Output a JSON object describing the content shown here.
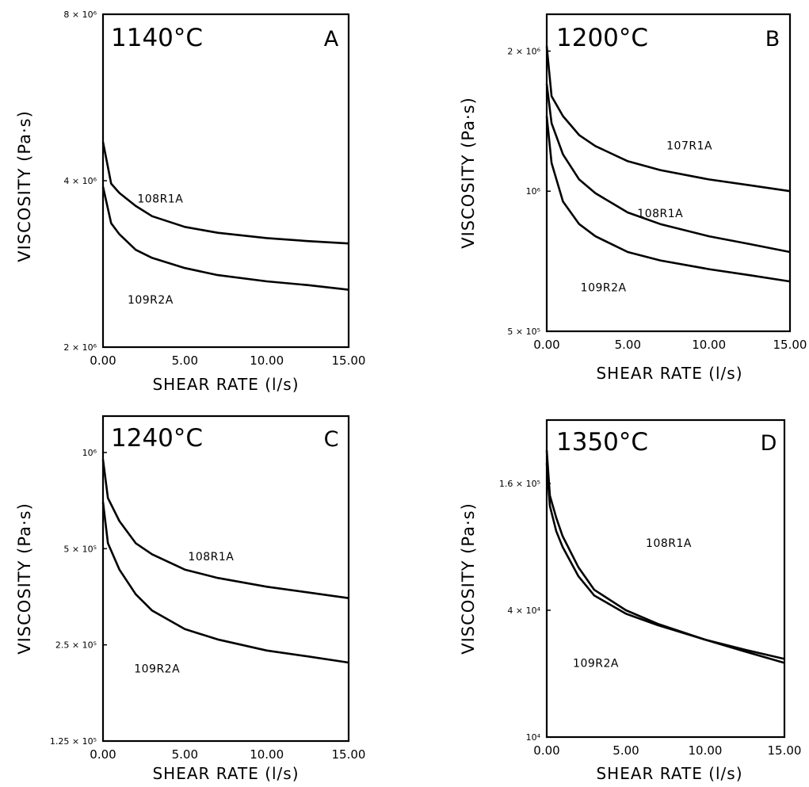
{
  "chart_data": [
    {
      "type": "line",
      "panel": "A",
      "temperature": "1140°C",
      "xlabel": "SHEAR RATE (l/s)",
      "ylabel": "VISCOSITY (Pa·s)",
      "xlim": [
        0,
        15
      ],
      "ylim": [
        2000000,
        8000000
      ],
      "y_scale": "log",
      "x_ticks": [
        "0.00",
        "5.00",
        "10.00",
        "15.00"
      ],
      "y_ticks": [
        {
          "value": 8000000,
          "label": "8 × 10⁶"
        },
        {
          "value": 4000000,
          "label": "4 × 10⁶"
        },
        {
          "value": 2000000,
          "label": "2 × 10⁶"
        }
      ],
      "series": [
        {
          "name": "108R1A",
          "x": [
            0,
            0.5,
            1,
            2,
            3,
            5,
            7,
            10,
            12.5,
            15
          ],
          "y": [
            4700000,
            3950000,
            3800000,
            3600000,
            3450000,
            3300000,
            3220000,
            3150000,
            3110000,
            3080000
          ]
        },
        {
          "name": "109R2A",
          "x": [
            0,
            0.5,
            1,
            2,
            3,
            5,
            7,
            10,
            12.5,
            15
          ],
          "y": [
            3900000,
            3350000,
            3200000,
            3000000,
            2900000,
            2780000,
            2700000,
            2630000,
            2590000,
            2540000
          ]
        }
      ]
    },
    {
      "type": "line",
      "panel": "B",
      "temperature": "1200°C",
      "xlabel": "SHEAR RATE (l/s)",
      "ylabel": "VISCOSITY (Pa·s)",
      "xlim": [
        0,
        15
      ],
      "ylim": [
        500000,
        2400000
      ],
      "y_scale": "log",
      "x_ticks": [
        "0.00",
        "5.00",
        "10.00",
        "15.00"
      ],
      "y_ticks": [
        {
          "value": 2000000,
          "label": "2 × 10⁶"
        },
        {
          "value": 1000000,
          "label": "10⁶"
        },
        {
          "value": 500000,
          "label": "5 × 10⁵"
        }
      ],
      "series": [
        {
          "name": "107R1A",
          "x": [
            0,
            0.3,
            1,
            2,
            3,
            5,
            7,
            10,
            12.5,
            15
          ],
          "y": [
            2050000,
            1600000,
            1450000,
            1320000,
            1250000,
            1160000,
            1110000,
            1060000,
            1030000,
            1000000
          ]
        },
        {
          "name": "108R1A",
          "x": [
            0,
            0.3,
            1,
            2,
            3,
            5,
            7,
            10,
            12.5,
            15
          ],
          "y": [
            1700000,
            1400000,
            1200000,
            1060000,
            990000,
            900000,
            850000,
            800000,
            770000,
            740000
          ]
        },
        {
          "name": "109R2A",
          "x": [
            0,
            0.3,
            1,
            2,
            3,
            5,
            7,
            10,
            12.5,
            15
          ],
          "y": [
            1450000,
            1150000,
            950000,
            850000,
            800000,
            740000,
            710000,
            680000,
            660000,
            640000
          ]
        }
      ]
    },
    {
      "type": "line",
      "panel": "C",
      "temperature": "1240°C",
      "xlabel": "SHEAR RATE (l/s)",
      "ylabel": "VISCOSITY (Pa·s)",
      "xlim": [
        0,
        15
      ],
      "ylim": [
        125000,
        1300000
      ],
      "y_scale": "log",
      "x_ticks": [
        "0.00",
        "5.00",
        "10.00",
        "15.00"
      ],
      "y_ticks": [
        {
          "value": 1000000,
          "label": "10⁶"
        },
        {
          "value": 500000,
          "label": "5 × 10⁵"
        },
        {
          "value": 250000,
          "label": "2.5 × 10⁵"
        },
        {
          "value": 125000,
          "label": "1.25 × 10⁵"
        }
      ],
      "series": [
        {
          "name": "108R1A",
          "x": [
            0,
            0.3,
            1,
            2,
            3,
            5,
            7,
            10,
            12.5,
            15
          ],
          "y": [
            950000,
            720000,
            610000,
            520000,
            480000,
            430000,
            405000,
            380000,
            365000,
            350000
          ]
        },
        {
          "name": "109R2A",
          "x": [
            0,
            0.3,
            1,
            2,
            3,
            5,
            7,
            10,
            12.5,
            15
          ],
          "y": [
            700000,
            520000,
            430000,
            360000,
            320000,
            280000,
            260000,
            240000,
            230000,
            220000
          ]
        }
      ]
    },
    {
      "type": "line",
      "panel": "D",
      "temperature": "1350°C",
      "xlabel": "SHEAR RATE (l/s)",
      "ylabel": "VISCOSITY (Pa·s)",
      "xlim": [
        0,
        15
      ],
      "ylim": [
        10000,
        320000
      ],
      "y_scale": "log",
      "x_ticks": [
        "0.00",
        "5.00",
        "10.00",
        "15.00"
      ],
      "y_ticks": [
        {
          "value": 160000,
          "label": "1.6 × 10⁵"
        },
        {
          "value": 40000,
          "label": "4 × 10⁴"
        },
        {
          "value": 10000,
          "label": "10⁴"
        }
      ],
      "series": [
        {
          "name": "108R1A",
          "x": [
            0,
            0.2,
            0.6,
            1,
            2,
            3,
            5,
            7,
            10,
            12.5,
            15
          ],
          "y": [
            230000,
            140000,
            110000,
            90000,
            64000,
            50000,
            40000,
            34500,
            29000,
            26000,
            23500
          ]
        },
        {
          "name": "109R2A",
          "x": [
            0,
            0.2,
            0.6,
            1,
            2,
            3,
            5,
            7,
            10,
            12.5,
            15
          ],
          "y": [
            200000,
            125000,
            95000,
            80000,
            58000,
            47000,
            38500,
            34000,
            29000,
            25500,
            22500
          ]
        }
      ]
    }
  ]
}
